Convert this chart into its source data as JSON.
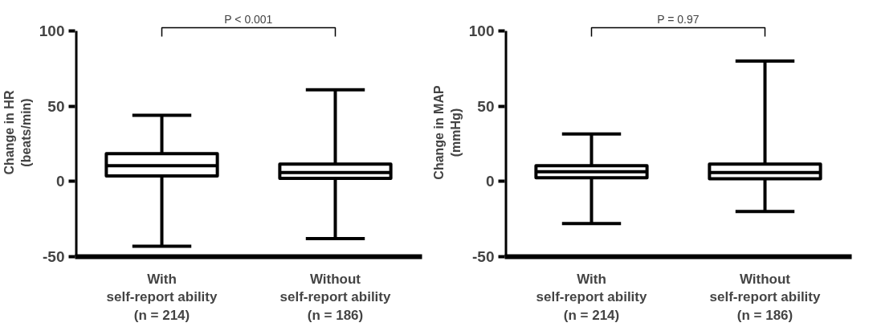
{
  "chart_data": [
    {
      "type": "box",
      "categories": [
        "With\nself-report ability\n(n = 214)",
        "Without\nself-report ability\n(n = 186)"
      ],
      "ylabel": "Change in HR\n(beats/min)",
      "ylim": [
        -50,
        100
      ],
      "yticks": [
        -50,
        0,
        50,
        100
      ],
      "grid": false,
      "annotations": [
        "P < 0.001"
      ],
      "boxes": [
        {
          "low": -43,
          "q1": 3.7,
          "median": 10.5,
          "q3": 18.5,
          "high": 44
        },
        {
          "low": -38,
          "q1": 2,
          "median": 6,
          "q3": 11.5,
          "high": 61
        }
      ]
    },
    {
      "type": "box",
      "categories": [
        "With\nself-report ability\n(n = 214)",
        "Without\nself-report ability\n(n = 186)"
      ],
      "ylabel": "Change in MAP\n(mmHg)",
      "ylim": [
        -50,
        100
      ],
      "yticks": [
        -50,
        0,
        50,
        100
      ],
      "grid": false,
      "annotations": [
        "P = 0.97"
      ],
      "boxes": [
        {
          "low": -28,
          "q1": 2.5,
          "median": 6.5,
          "q3": 10.5,
          "high": 31.5
        },
        {
          "low": -20,
          "q1": 1.8,
          "median": 6,
          "q3": 11.5,
          "high": 80
        }
      ]
    }
  ]
}
